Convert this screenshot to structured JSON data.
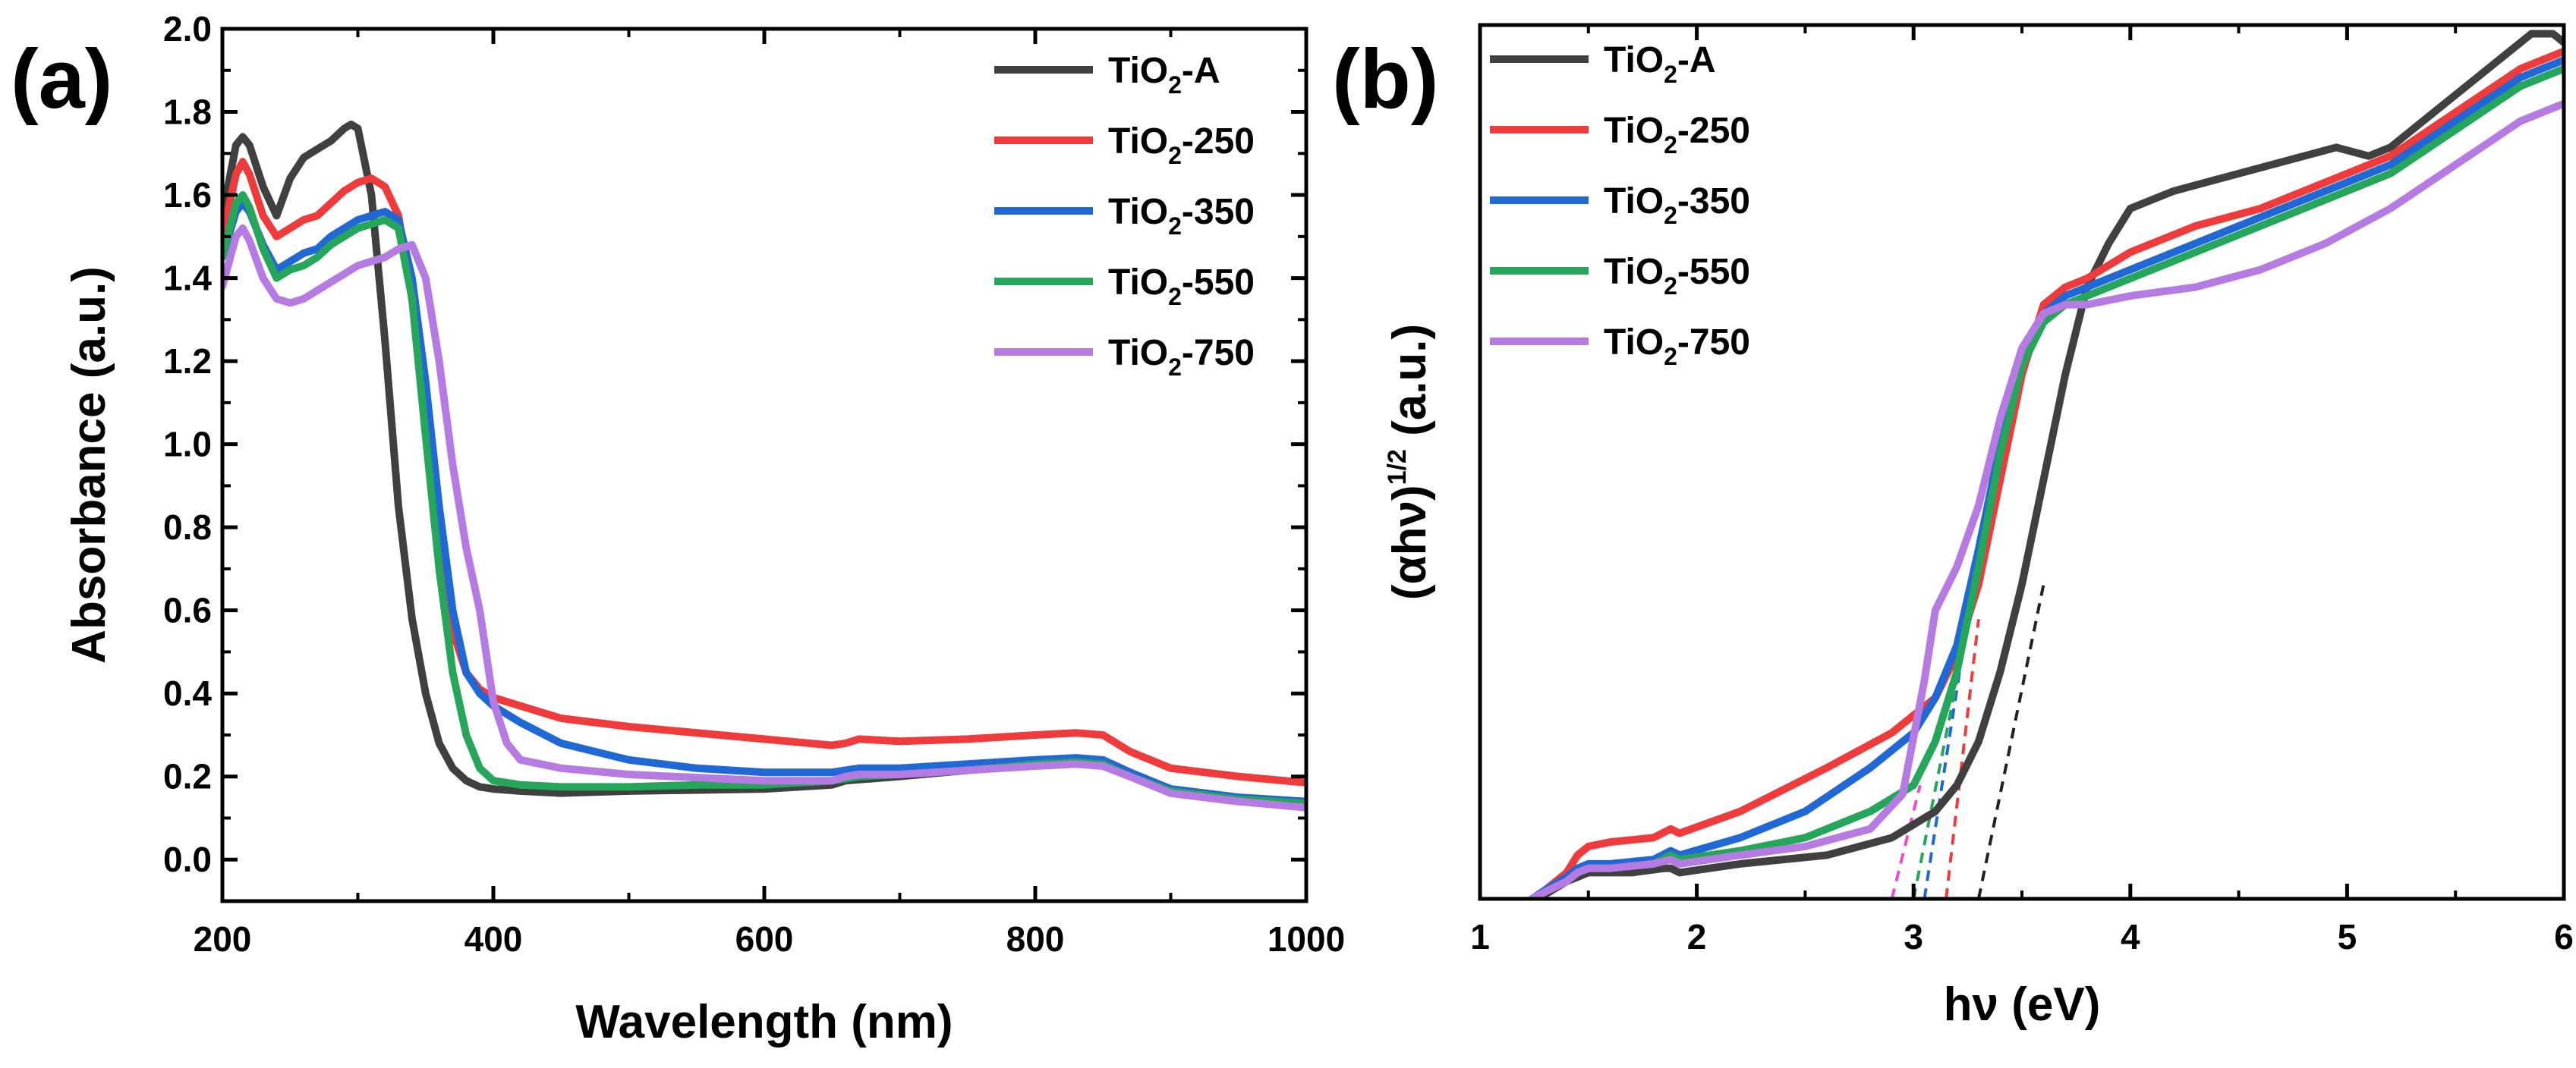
{
  "chart_data": [
    {
      "type": "line",
      "panel_label": "(a)",
      "xlabel": "Wavelength (nm)",
      "ylabel": "Absorbance (a.u.)",
      "xlim": [
        200,
        1000
      ],
      "ylim": [
        -0.1,
        2.0
      ],
      "xticks": [
        200,
        400,
        600,
        800,
        1000
      ],
      "xtick_labels": [
        "200",
        "400",
        "600",
        "800",
        "1000"
      ],
      "yticks": [
        0.0,
        0.2,
        0.4,
        0.6,
        0.8,
        1.0,
        1.2,
        1.4,
        1.6,
        1.8,
        2.0
      ],
      "ytick_labels": [
        "0.0",
        "0.2",
        "0.4",
        "0.6",
        "0.8",
        "1.0",
        "1.2",
        "1.4",
        "1.6",
        "1.8",
        "2.0"
      ],
      "grid": false,
      "legend_position": "top-right",
      "series": [
        {
          "name": "TiO2-A",
          "name_main": "TiO",
          "name_sub": "2",
          "name_suffix": "-A",
          "color": "#404040",
          "x": [
            200,
            210,
            215,
            220,
            230,
            240,
            250,
            260,
            270,
            280,
            290,
            295,
            300,
            310,
            320,
            330,
            340,
            350,
            360,
            370,
            380,
            390,
            400,
            420,
            450,
            500,
            600,
            650,
            660,
            700,
            750,
            800,
            830,
            850,
            870,
            900,
            950,
            1000
          ],
          "y": [
            1.55,
            1.72,
            1.74,
            1.72,
            1.62,
            1.55,
            1.64,
            1.69,
            1.71,
            1.73,
            1.76,
            1.77,
            1.76,
            1.6,
            1.25,
            0.85,
            0.58,
            0.4,
            0.28,
            0.22,
            0.19,
            0.175,
            0.17,
            0.165,
            0.16,
            0.165,
            0.17,
            0.18,
            0.19,
            0.2,
            0.215,
            0.23,
            0.235,
            0.225,
            0.2,
            0.16,
            0.14,
            0.13
          ]
        },
        {
          "name": "TiO2-250",
          "name_main": "TiO",
          "name_sub": "2",
          "name_suffix": "-250",
          "color": "#ef3b3b",
          "x": [
            200,
            210,
            215,
            220,
            230,
            240,
            250,
            260,
            270,
            280,
            290,
            300,
            310,
            320,
            330,
            340,
            350,
            360,
            370,
            380,
            390,
            400,
            420,
            450,
            500,
            600,
            650,
            660,
            670,
            700,
            750,
            800,
            830,
            850,
            870,
            900,
            950,
            1000
          ],
          "y": [
            1.5,
            1.65,
            1.68,
            1.65,
            1.55,
            1.5,
            1.52,
            1.54,
            1.55,
            1.58,
            1.61,
            1.63,
            1.64,
            1.62,
            1.55,
            1.35,
            1.05,
            0.75,
            0.55,
            0.45,
            0.41,
            0.39,
            0.37,
            0.34,
            0.32,
            0.29,
            0.275,
            0.28,
            0.29,
            0.285,
            0.29,
            0.3,
            0.305,
            0.3,
            0.26,
            0.22,
            0.2,
            0.185
          ]
        },
        {
          "name": "TiO2-350",
          "name_main": "TiO",
          "name_sub": "2",
          "name_suffix": "-350",
          "color": "#1f68d6",
          "x": [
            200,
            210,
            215,
            220,
            230,
            240,
            250,
            260,
            270,
            280,
            290,
            300,
            310,
            320,
            330,
            340,
            350,
            360,
            370,
            380,
            390,
            400,
            420,
            450,
            500,
            550,
            600,
            650,
            660,
            670,
            700,
            750,
            800,
            830,
            850,
            870,
            900,
            950,
            1000
          ],
          "y": [
            1.45,
            1.56,
            1.58,
            1.56,
            1.48,
            1.42,
            1.44,
            1.46,
            1.47,
            1.5,
            1.52,
            1.54,
            1.55,
            1.56,
            1.54,
            1.4,
            1.15,
            0.85,
            0.6,
            0.45,
            0.4,
            0.37,
            0.33,
            0.28,
            0.24,
            0.22,
            0.21,
            0.21,
            0.215,
            0.22,
            0.22,
            0.23,
            0.24,
            0.245,
            0.24,
            0.21,
            0.17,
            0.15,
            0.14
          ]
        },
        {
          "name": "TiO2-550",
          "name_main": "TiO",
          "name_sub": "2",
          "name_suffix": "-550",
          "color": "#26a65b",
          "x": [
            200,
            210,
            215,
            220,
            230,
            240,
            250,
            260,
            270,
            280,
            290,
            300,
            310,
            320,
            330,
            340,
            350,
            360,
            370,
            380,
            390,
            400,
            420,
            450,
            500,
            550,
            600,
            650,
            660,
            670,
            700,
            750,
            800,
            830,
            850,
            870,
            900,
            950,
            1000
          ],
          "y": [
            1.45,
            1.58,
            1.6,
            1.57,
            1.47,
            1.4,
            1.42,
            1.43,
            1.45,
            1.48,
            1.5,
            1.52,
            1.53,
            1.54,
            1.52,
            1.35,
            1.02,
            0.7,
            0.45,
            0.3,
            0.22,
            0.19,
            0.18,
            0.175,
            0.175,
            0.18,
            0.18,
            0.19,
            0.195,
            0.2,
            0.205,
            0.215,
            0.23,
            0.235,
            0.23,
            0.2,
            0.165,
            0.145,
            0.135
          ]
        },
        {
          "name": "TiO2-750",
          "name_main": "TiO",
          "name_sub": "2",
          "name_suffix": "-750",
          "color": "#b57be3",
          "x": [
            200,
            210,
            215,
            220,
            230,
            240,
            250,
            260,
            270,
            280,
            290,
            300,
            310,
            320,
            330,
            340,
            350,
            360,
            370,
            380,
            390,
            400,
            410,
            420,
            450,
            500,
            600,
            650,
            660,
            670,
            700,
            750,
            800,
            830,
            850,
            870,
            900,
            950,
            1000
          ],
          "y": [
            1.38,
            1.5,
            1.52,
            1.49,
            1.4,
            1.35,
            1.34,
            1.35,
            1.37,
            1.39,
            1.41,
            1.43,
            1.44,
            1.45,
            1.47,
            1.48,
            1.4,
            1.2,
            0.95,
            0.75,
            0.6,
            0.38,
            0.28,
            0.24,
            0.22,
            0.205,
            0.19,
            0.19,
            0.2,
            0.205,
            0.205,
            0.215,
            0.225,
            0.23,
            0.225,
            0.2,
            0.16,
            0.14,
            0.125
          ]
        }
      ]
    },
    {
      "type": "line",
      "panel_label": "(b)",
      "xlabel": "hν (eV)",
      "ylabel": "(αhν)",
      "ylabel_superscript": "1/2",
      "ylabel_suffix": " (a.u.)",
      "xlim": [
        1,
        6
      ],
      "ylim": [
        0,
        1
      ],
      "xticks": [
        1,
        2,
        3,
        4,
        5,
        6
      ],
      "xtick_labels": [
        "1",
        "2",
        "3",
        "4",
        "5",
        "6"
      ],
      "yticks": [],
      "grid": false,
      "legend_position": "top-left",
      "tangent_lines": [
        {
          "series": "TiO2-A",
          "color": "#222222",
          "x": [
            3.3,
            3.6
          ],
          "y": [
            0.0,
            0.36
          ]
        },
        {
          "series": "TiO2-250",
          "color": "#ef3b3b",
          "x": [
            3.15,
            3.3
          ],
          "y": [
            0.0,
            0.32
          ]
        },
        {
          "series": "TiO2-350",
          "color": "#1f68d6",
          "x": [
            3.05,
            3.25
          ],
          "y": [
            0.0,
            0.32
          ]
        },
        {
          "series": "TiO2-550",
          "color": "#26a65b",
          "x": [
            3.0,
            3.28
          ],
          "y": [
            0.0,
            0.35
          ]
        },
        {
          "series": "TiO2-750",
          "color": "#e84fd0",
          "x": [
            2.9,
            3.03
          ],
          "y": [
            0.0,
            0.13
          ]
        }
      ],
      "series": [
        {
          "name": "TiO2-A",
          "name_main": "TiO",
          "name_sub": "2",
          "name_suffix": "-A",
          "color": "#404040",
          "x": [
            1.24,
            1.3,
            1.4,
            1.45,
            1.5,
            1.7,
            1.85,
            1.88,
            1.92,
            2.2,
            2.6,
            2.9,
            3.1,
            3.2,
            3.3,
            3.4,
            3.5,
            3.6,
            3.7,
            3.8,
            3.9,
            4.0,
            4.2,
            4.5,
            4.8,
            4.95,
            5.1,
            5.2,
            5.4,
            5.7,
            5.85,
            5.95,
            6.0
          ],
          "y": [
            0.0,
            0.005,
            0.02,
            0.025,
            0.03,
            0.03,
            0.035,
            0.035,
            0.03,
            0.04,
            0.05,
            0.07,
            0.1,
            0.13,
            0.18,
            0.26,
            0.36,
            0.48,
            0.6,
            0.7,
            0.75,
            0.79,
            0.81,
            0.83,
            0.85,
            0.86,
            0.85,
            0.86,
            0.9,
            0.96,
            0.99,
            0.99,
            0.98
          ]
        },
        {
          "name": "TiO2-250",
          "name_main": "TiO",
          "name_sub": "2",
          "name_suffix": "-250",
          "color": "#ef3b3b",
          "x": [
            1.24,
            1.3,
            1.4,
            1.45,
            1.5,
            1.6,
            1.8,
            1.88,
            1.92,
            2.2,
            2.6,
            2.9,
            3.1,
            3.2,
            3.3,
            3.4,
            3.5,
            3.6,
            3.7,
            3.8,
            4.0,
            4.3,
            4.6,
            4.9,
            5.2,
            5.5,
            5.8,
            6.0
          ],
          "y": [
            0.0,
            0.01,
            0.03,
            0.05,
            0.06,
            0.065,
            0.07,
            0.08,
            0.075,
            0.1,
            0.15,
            0.19,
            0.23,
            0.28,
            0.36,
            0.48,
            0.6,
            0.68,
            0.7,
            0.71,
            0.74,
            0.77,
            0.79,
            0.82,
            0.85,
            0.9,
            0.95,
            0.97
          ]
        },
        {
          "name": "TiO2-350",
          "name_main": "TiO",
          "name_sub": "2",
          "name_suffix": "-350",
          "color": "#1f68d6",
          "x": [
            1.24,
            1.3,
            1.4,
            1.45,
            1.5,
            1.6,
            1.8,
            1.88,
            1.92,
            2.2,
            2.5,
            2.8,
            3.0,
            3.1,
            3.2,
            3.3,
            3.4,
            3.5,
            3.6,
            3.7,
            3.8,
            4.0,
            4.3,
            4.6,
            4.9,
            5.2,
            5.5,
            5.8,
            6.0
          ],
          "y": [
            0.0,
            0.01,
            0.025,
            0.035,
            0.04,
            0.04,
            0.045,
            0.055,
            0.05,
            0.07,
            0.1,
            0.15,
            0.19,
            0.23,
            0.29,
            0.4,
            0.52,
            0.62,
            0.67,
            0.69,
            0.7,
            0.72,
            0.75,
            0.78,
            0.81,
            0.84,
            0.89,
            0.94,
            0.96
          ]
        },
        {
          "name": "TiO2-550",
          "name_main": "TiO",
          "name_sub": "2",
          "name_suffix": "-550",
          "color": "#26a65b",
          "x": [
            1.24,
            1.3,
            1.4,
            1.45,
            1.5,
            1.6,
            1.8,
            1.88,
            1.92,
            2.2,
            2.5,
            2.8,
            3.0,
            3.1,
            3.2,
            3.3,
            3.4,
            3.5,
            3.6,
            3.7,
            3.8,
            4.0,
            4.3,
            4.6,
            4.9,
            5.2,
            5.5,
            5.8,
            6.0
          ],
          "y": [
            0.0,
            0.008,
            0.02,
            0.03,
            0.035,
            0.035,
            0.04,
            0.05,
            0.045,
            0.055,
            0.07,
            0.1,
            0.13,
            0.18,
            0.26,
            0.38,
            0.51,
            0.61,
            0.66,
            0.68,
            0.69,
            0.71,
            0.74,
            0.77,
            0.8,
            0.83,
            0.88,
            0.93,
            0.95
          ]
        },
        {
          "name": "TiO2-750",
          "name_main": "TiO",
          "name_sub": "2",
          "name_suffix": "-750",
          "color": "#b57be3",
          "x": [
            1.24,
            1.3,
            1.4,
            1.45,
            1.5,
            1.6,
            1.8,
            1.88,
            1.92,
            2.2,
            2.5,
            2.8,
            2.95,
            3.05,
            3.1,
            3.2,
            3.3,
            3.4,
            3.5,
            3.6,
            3.7,
            3.8,
            4.0,
            4.3,
            4.6,
            4.9,
            5.2,
            5.5,
            5.8,
            6.0
          ],
          "y": [
            0.0,
            0.008,
            0.02,
            0.03,
            0.035,
            0.035,
            0.04,
            0.045,
            0.04,
            0.05,
            0.06,
            0.08,
            0.12,
            0.25,
            0.33,
            0.38,
            0.45,
            0.55,
            0.63,
            0.67,
            0.68,
            0.68,
            0.69,
            0.7,
            0.72,
            0.75,
            0.79,
            0.84,
            0.89,
            0.91
          ]
        }
      ]
    }
  ]
}
